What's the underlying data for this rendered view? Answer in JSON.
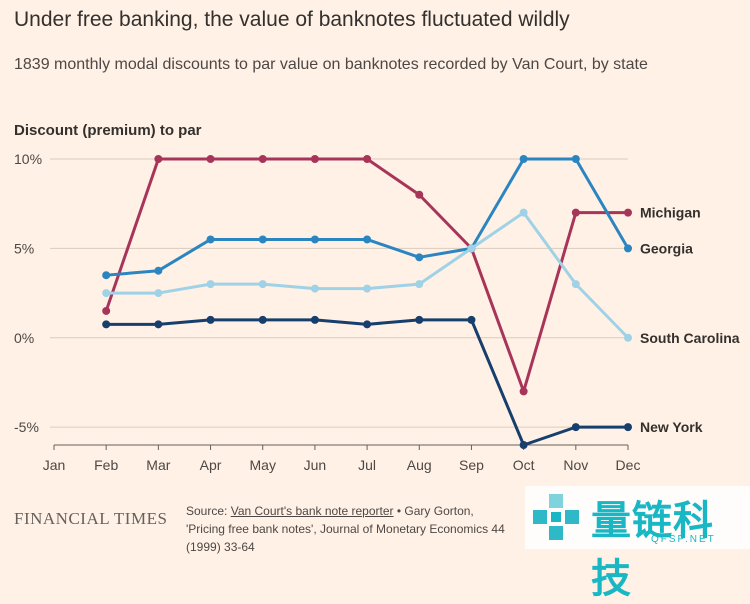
{
  "header": {
    "title": "Under free banking, the value of banknotes fluctuated wildly",
    "subtitle": "1839 monthly modal discounts to par value on banknotes recorded by Van Court, by state"
  },
  "footer": {
    "brand": "FINANCIAL TIMES",
    "source_prefix": "Source: ",
    "source_link": "Van Court's bank note reporter",
    "source_rest": " • Gary Gorton, 'Pricing free bank notes', Journal of Monetary Economics 44 (1999) 33-64"
  },
  "watermark": {
    "text": "量链科技",
    "sub": "QFSP.NET"
  },
  "chart_data": {
    "type": "line",
    "title": "Under free banking, the value of banknotes fluctuated wildly",
    "subtitle": "1839 monthly modal discounts to par value on banknotes recorded by Van Court, by state",
    "ylabel": "Discount (premium) to par",
    "xlabel": "",
    "categories": [
      "Jan",
      "Feb",
      "Mar",
      "Apr",
      "May",
      "Jun",
      "Jul",
      "Aug",
      "Sep",
      "Oct",
      "Nov",
      "Dec"
    ],
    "ylim": [
      -6,
      10
    ],
    "yticks": [
      10,
      5,
      0,
      -5
    ],
    "ytick_labels": [
      "10%",
      "5%",
      "0%",
      "-5%"
    ],
    "grid": true,
    "series": [
      {
        "name": "Michigan",
        "color": "#a7355a",
        "values": [
          null,
          1.5,
          10,
          10,
          10,
          10,
          10,
          8,
          5,
          -3,
          7,
          7
        ]
      },
      {
        "name": "Georgia",
        "color": "#2b85c0",
        "values": [
          null,
          3.5,
          3.75,
          5.5,
          5.5,
          5.5,
          5.5,
          4.5,
          5,
          10,
          10,
          5
        ]
      },
      {
        "name": "South Carolina",
        "color": "#9fd2e6",
        "values": [
          null,
          2.5,
          2.5,
          3,
          3,
          2.75,
          2.75,
          3,
          5,
          7,
          3,
          0
        ]
      },
      {
        "name": "New York",
        "color": "#173f6e",
        "values": [
          null,
          0.75,
          0.75,
          1,
          1,
          1,
          0.75,
          1,
          1,
          -6,
          -5,
          -5
        ]
      }
    ]
  }
}
